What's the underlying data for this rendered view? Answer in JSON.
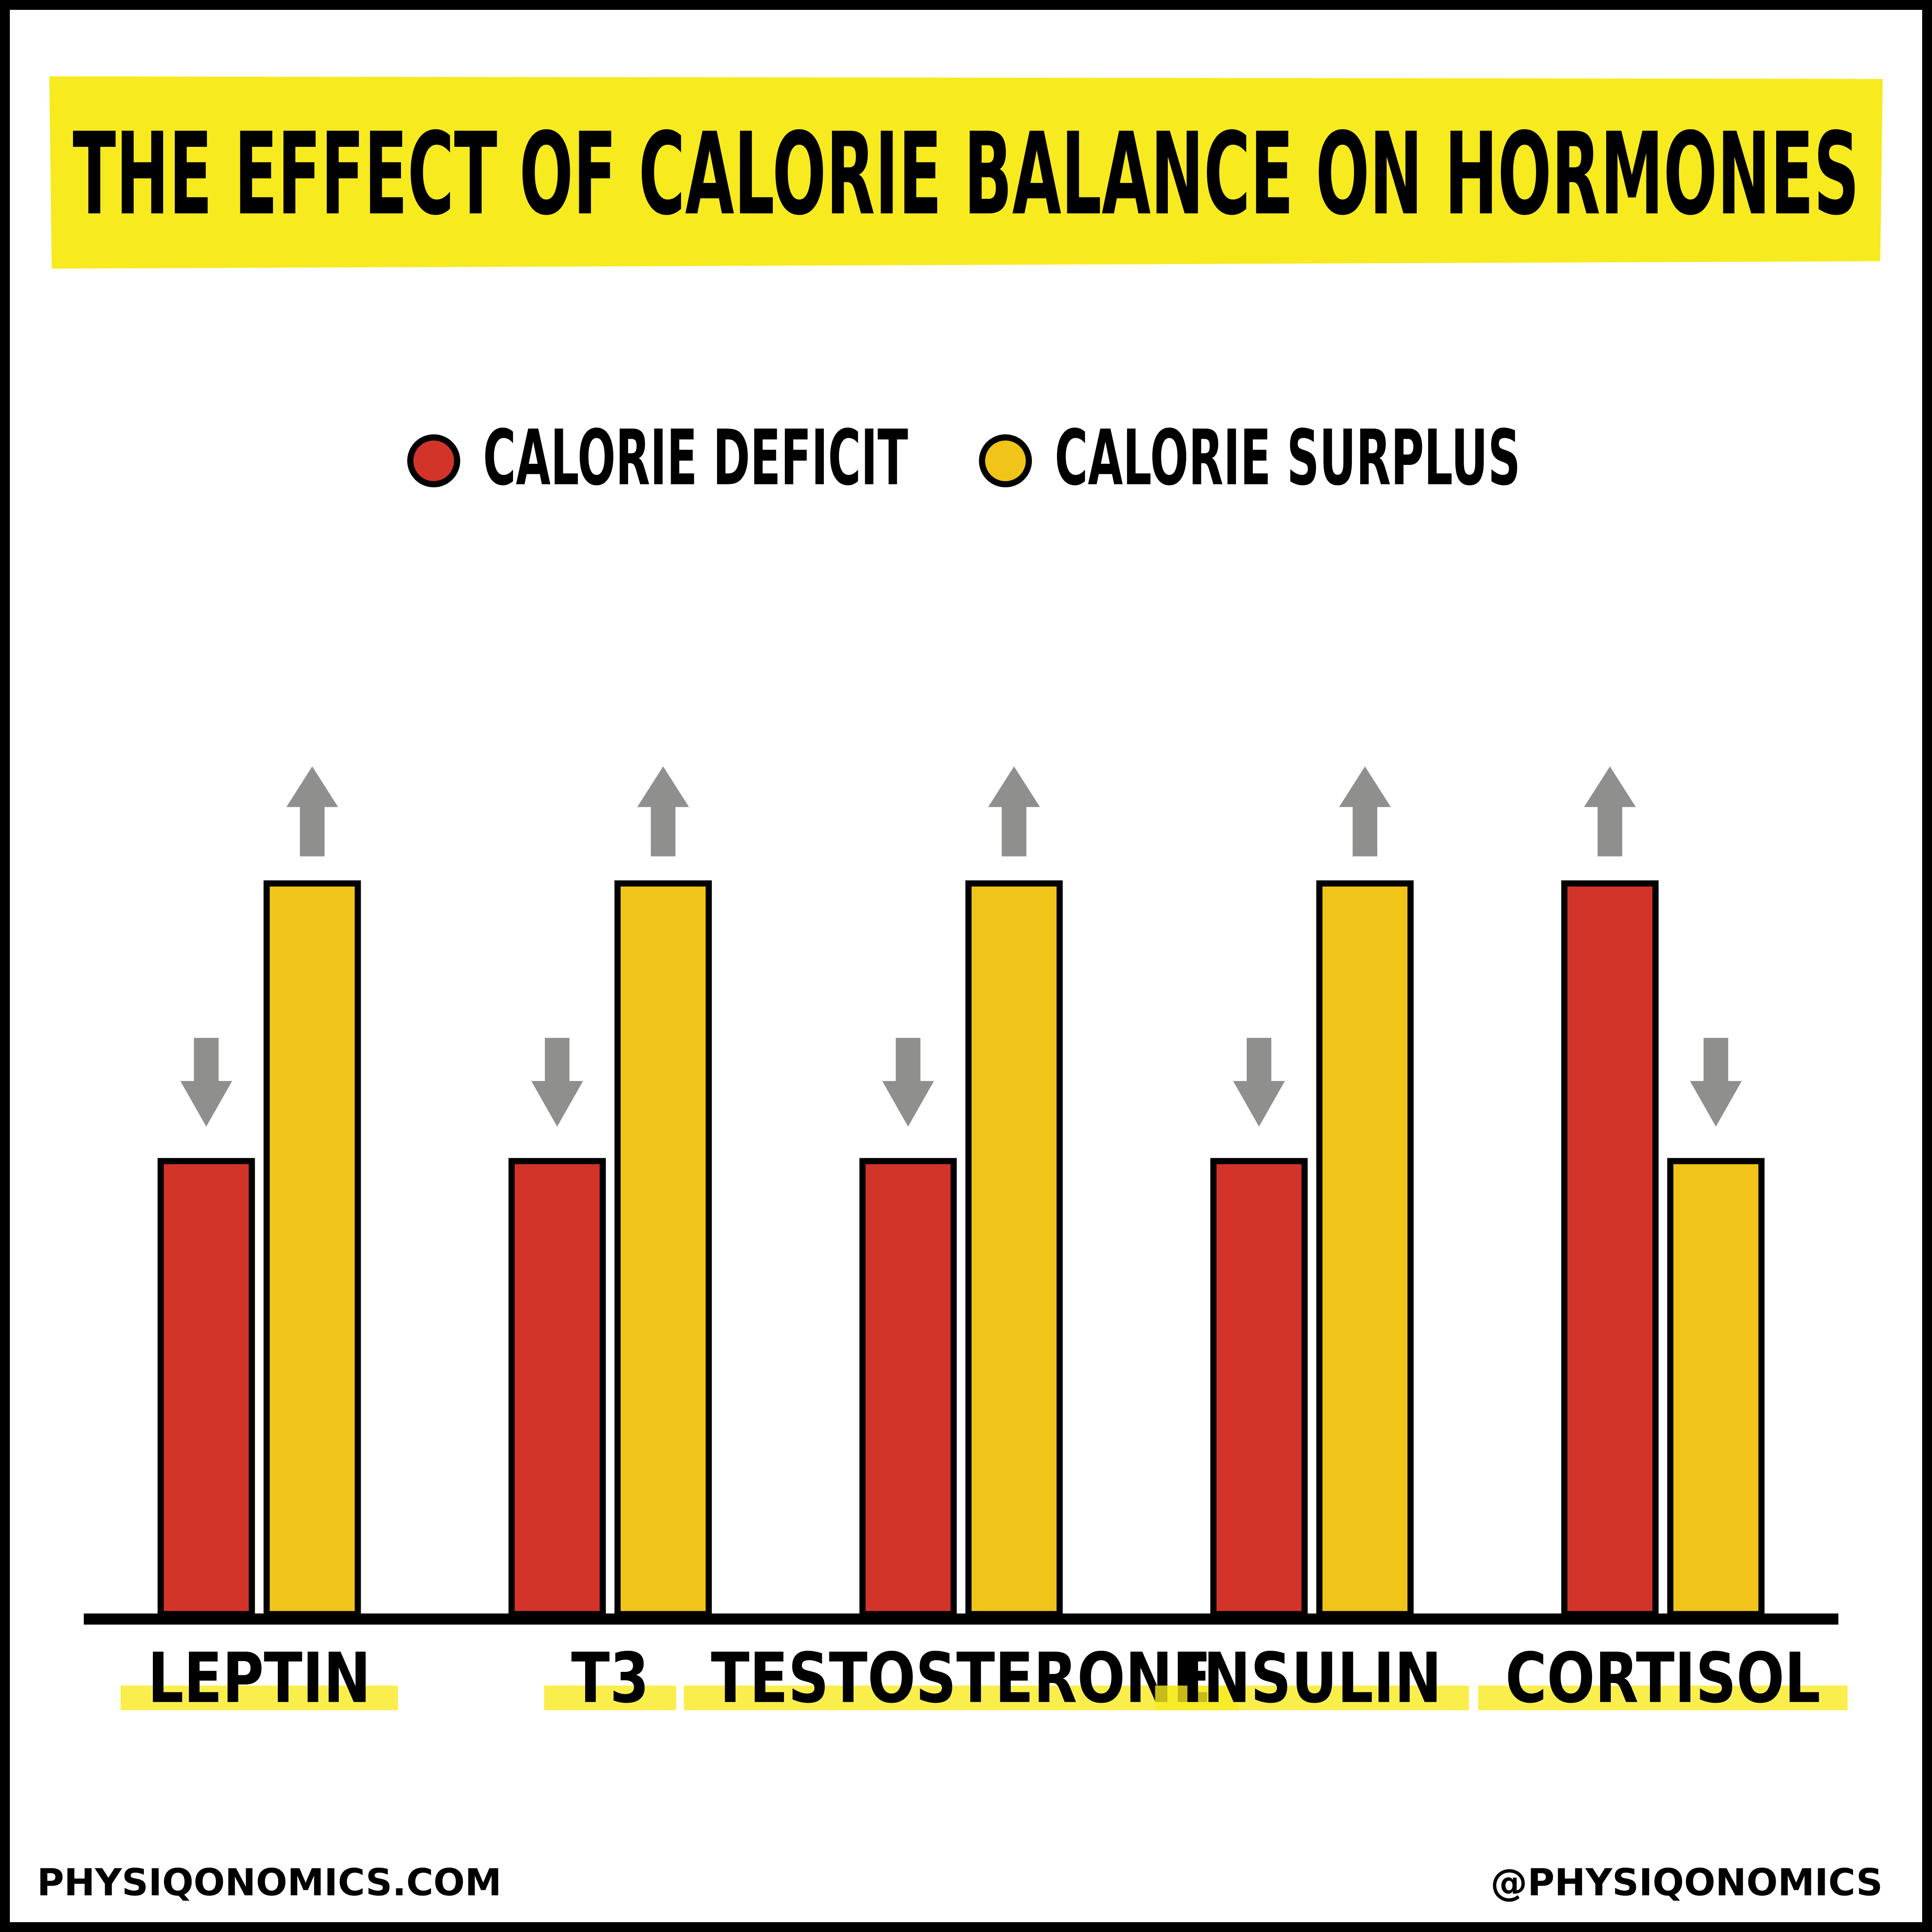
{
  "chart_data": {
    "type": "bar",
    "title": "THE EFFECT OF CALORIE BALANCE ON HORMONES",
    "categories": [
      "LEPTIN",
      "T3",
      "TESTOSTERONE",
      "INSULIN",
      "CORTISOL"
    ],
    "series": [
      {
        "name": "CALORIE DEFICIT",
        "color": "#d2342a",
        "values": [
          62,
          62,
          62,
          62,
          100
        ]
      },
      {
        "name": "CALORIE SURPLUS",
        "color": "#f0c419",
        "values": [
          100,
          100,
          100,
          100,
          62
        ]
      }
    ],
    "ylim": [
      0,
      100
    ]
  },
  "footer": {
    "left": "PHYSIQONOMICS.COM",
    "right": "@PHYSIQONOMICS"
  }
}
